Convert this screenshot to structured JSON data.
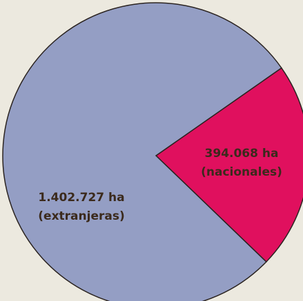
{
  "chart_data": {
    "type": "pie",
    "categories": [
      "(nacionales)",
      "(extranjeras)"
    ],
    "values": [
      394068,
      1402727
    ],
    "value_labels": [
      "394.068 ha",
      "1.402.727 ha"
    ],
    "colors": [
      "#e0105e",
      "#949ec4"
    ]
  }
}
